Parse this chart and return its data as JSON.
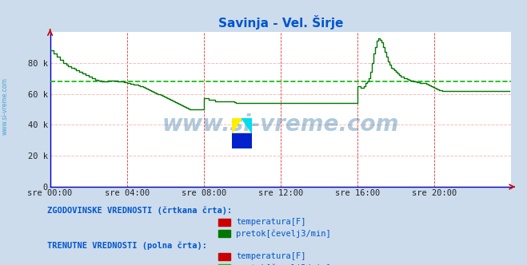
{
  "title": "Savinja - Vel. Širje",
  "title_color": "#0055cc",
  "bg_color": "#ccdcec",
  "plot_bg_color": "#ffffff",
  "xlabel_ticks": [
    "sre 00:00",
    "sre 04:00",
    "sre 08:00",
    "sre 12:00",
    "sre 16:00",
    "sre 20:00"
  ],
  "xlabel_tick_pos": [
    0,
    48,
    96,
    144,
    192,
    240
  ],
  "yticks": [
    0,
    20000,
    40000,
    60000,
    80000
  ],
  "ytick_labels": [
    "0",
    "20 k",
    "40 k",
    "60 k",
    "80 k"
  ],
  "ymax": 100000,
  "xmax": 288,
  "grid_v_color": "#dd0000",
  "grid_h_color": "#ffbbbb",
  "line_color": "#007700",
  "hist_dash_level": 68000,
  "hist_dash_color": "#00bb00",
  "watermark": "www.si-vreme.com",
  "watermark_color": "#1a6699",
  "watermark_alpha": 0.35,
  "legend_text1": "ZGODOVINSKE VREDNOSTI (črtkana črta):",
  "legend_text2": "TRENUTNE VREDNOSTI (polna črta):",
  "legend_items": [
    "temperatura[F]",
    "pretok[čevelj3/min]"
  ],
  "legend_color_hist_temp": "#cc0000",
  "legend_color_hist_flow": "#007700",
  "legend_color_curr_temp": "#cc0000",
  "legend_color_curr_flow": "#00cc00",
  "sidebar_text": "www.si-vreme.com",
  "sidebar_color": "#3399cc",
  "axis_color": "#0000bb",
  "pretok_data": [
    88000,
    88000,
    86000,
    86000,
    84000,
    84000,
    82000,
    82000,
    80000,
    80000,
    79000,
    78000,
    78000,
    77000,
    77000,
    76000,
    75000,
    75000,
    74000,
    74000,
    73000,
    73000,
    72000,
    72000,
    71000,
    71000,
    70000,
    70000,
    69000,
    69000,
    68500,
    68500,
    68000,
    68000,
    68000,
    68000,
    68500,
    68500,
    68500,
    68500,
    68500,
    68500,
    68000,
    68000,
    68000,
    68000,
    67500,
    67500,
    67000,
    67000,
    66500,
    66500,
    66000,
    66000,
    66000,
    65500,
    65000,
    65000,
    64500,
    64000,
    63500,
    63000,
    62500,
    62000,
    61500,
    61000,
    60500,
    60000,
    59500,
    59000,
    58500,
    58000,
    57500,
    57000,
    56500,
    56000,
    55500,
    55000,
    54500,
    54000,
    53500,
    53000,
    52500,
    52000,
    51500,
    51000,
    50500,
    50000,
    50000,
    50000,
    50000,
    50000,
    50000,
    50000,
    50000,
    50000,
    57000,
    57000,
    57000,
    56000,
    56000,
    56000,
    56000,
    55000,
    55000,
    55000,
    55000,
    55000,
    55000,
    55000,
    55000,
    55000,
    55000,
    55000,
    55000,
    54500,
    54000,
    54000,
    54000,
    54000,
    54000,
    54000,
    54000,
    54000,
    54000,
    54000,
    54000,
    54000,
    54000,
    54000,
    54000,
    54000,
    54000,
    54000,
    54000,
    54000,
    54000,
    54000,
    54000,
    54000,
    54000,
    54000,
    54000,
    54000,
    54000,
    54000,
    54000,
    54000,
    54000,
    54000,
    54000,
    54000,
    54000,
    54000,
    54000,
    54000,
    54000,
    54000,
    54000,
    54000,
    54000,
    54000,
    54000,
    54000,
    54000,
    54000,
    54000,
    54000,
    54000,
    54000,
    54000,
    54000,
    54000,
    54000,
    54000,
    54000,
    54000,
    54000,
    54000,
    54000,
    54000,
    54000,
    54000,
    54000,
    54000,
    54000,
    54000,
    54000,
    54000,
    54000,
    54000,
    54000,
    65000,
    65000,
    64000,
    64000,
    65000,
    67000,
    68000,
    70000,
    74000,
    80000,
    86000,
    90000,
    94000,
    96000,
    95000,
    93000,
    90000,
    87000,
    84000,
    81000,
    79000,
    77000,
    76000,
    75000,
    74000,
    73000,
    72000,
    71000,
    71000,
    70000,
    70000,
    69500,
    69000,
    68500,
    68500,
    68000,
    68000,
    67500,
    67500,
    67000,
    67000,
    67000,
    67000,
    66500,
    66000,
    65500,
    65000,
    64500,
    64000,
    63500,
    63000,
    62500,
    62500,
    62000,
    62000,
    62000,
    62000,
    62000,
    62000,
    62000,
    62000,
    62000,
    62000,
    62000,
    62000,
    62000,
    62000,
    62000,
    62000,
    62000,
    62000,
    62000,
    62000,
    62000,
    62000,
    62000,
    62000,
    62000,
    62000,
    62000,
    62000,
    62000,
    62000,
    62000,
    62000,
    62000,
    62000,
    62000,
    62000,
    62000,
    62000,
    62000,
    62000,
    62000,
    62000,
    62000
  ]
}
